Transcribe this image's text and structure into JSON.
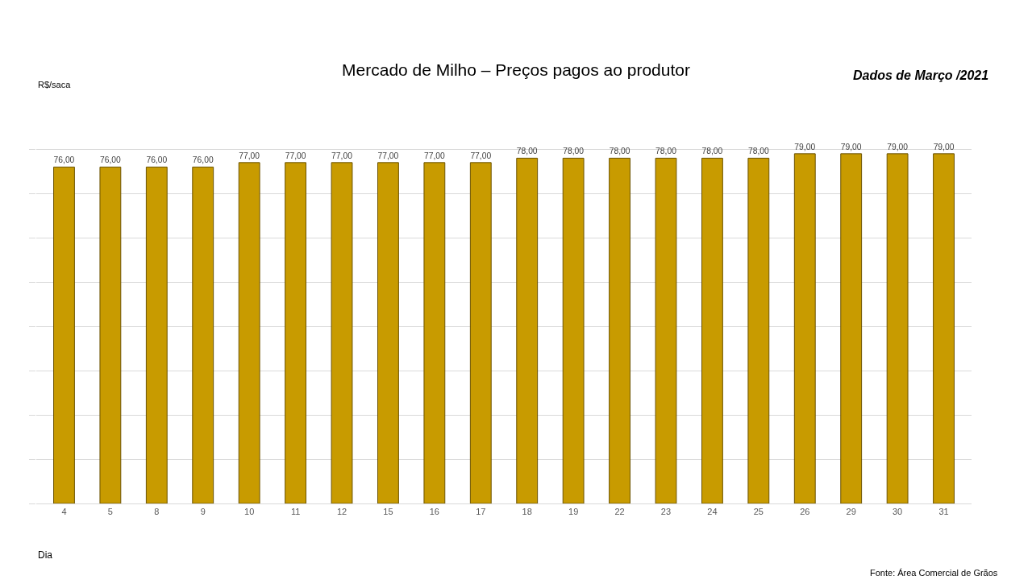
{
  "chart_data": {
    "type": "bar",
    "title": "Mercado de Milho – Preços pagos ao produtor",
    "subtitle": "Dados de Março /2021",
    "xlabel": "Dia",
    "annotations": [
      "R$/saca",
      "Fonte: Área Comercial de Grãos"
    ],
    "categories": [
      "4",
      "5",
      "8",
      "9",
      "10",
      "11",
      "12",
      "15",
      "16",
      "17",
      "18",
      "19",
      "22",
      "23",
      "24",
      "25",
      "26",
      "29",
      "30",
      "31"
    ],
    "values": [
      76,
      76,
      76,
      76,
      77,
      77,
      77,
      77,
      77,
      77,
      78,
      78,
      78,
      78,
      78,
      78,
      79,
      79,
      79,
      79
    ],
    "value_labels": [
      "76,00",
      "76,00",
      "76,00",
      "76,00",
      "77,00",
      "77,00",
      "77,00",
      "77,00",
      "77,00",
      "77,00",
      "78,00",
      "78,00",
      "78,00",
      "78,00",
      "78,00",
      "78,00",
      "79,00",
      "79,00",
      "79,00",
      "79,00"
    ],
    "color": "#c89b00",
    "grid": "y",
    "tick_labels": "x"
  }
}
